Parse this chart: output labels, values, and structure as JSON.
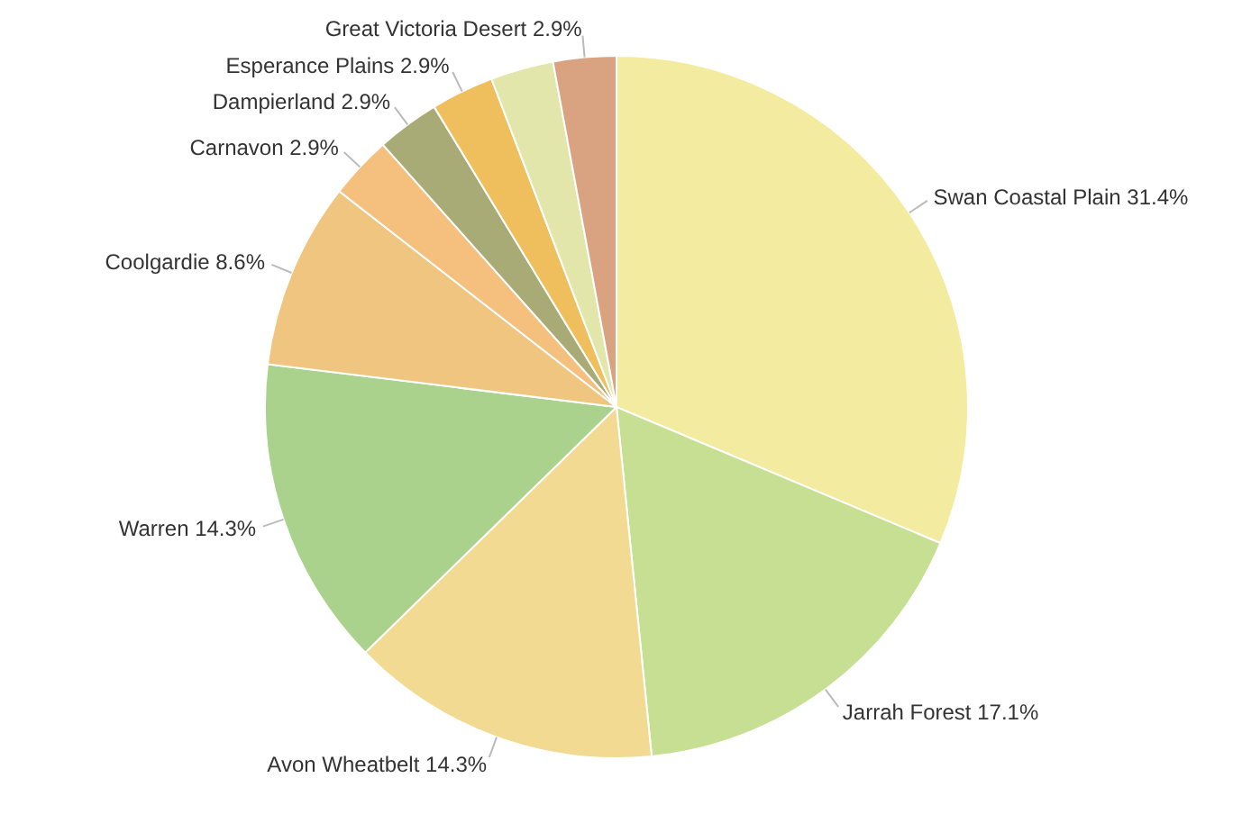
{
  "chart_data": {
    "type": "pie",
    "categories": [
      "Swan Coastal Plain",
      "Jarrah Forest",
      "Avon Wheatbelt",
      "Warren",
      "Coolgardie",
      "Carnavon",
      "Dampierland",
      "Esperance Plains",
      null,
      "Great Victoria Desert"
    ],
    "values": [
      31.4,
      17.1,
      14.3,
      14.3,
      8.6,
      2.9,
      2.9,
      2.9,
      2.9,
      2.9
    ],
    "value_labels": [
      "31.4%",
      "17.1%",
      "14.3%",
      "14.3%",
      "8.6%",
      "2.9%",
      "2.9%",
      "2.9%",
      null,
      "2.9%"
    ],
    "colors": [
      "#f3eb9f",
      "#c6df92",
      "#f3da93",
      "#abd28c",
      "#f0c57f",
      "#f5bf7d",
      "#a9ab77",
      "#efbf5e",
      "#e3e6ab",
      "#d9a281"
    ]
  }
}
